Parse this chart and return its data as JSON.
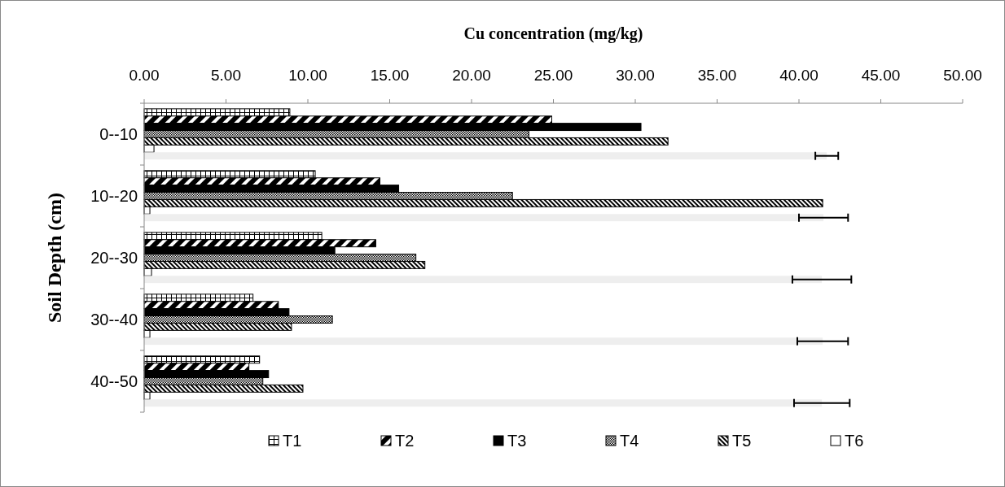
{
  "chart_data": {
    "type": "bar",
    "orientation": "horizontal",
    "xlabel": "Cu concentration (mg/kg)",
    "ylabel": "Soil Depth (cm)",
    "categories": [
      "0--10",
      "10--20",
      "20--30",
      "30--40",
      "40--50"
    ],
    "xlim": [
      0,
      50
    ],
    "xticks": [
      {
        "value": 0,
        "label": "0.00"
      },
      {
        "value": 5,
        "label": "5.00"
      },
      {
        "value": 10,
        "label": "10.00"
      },
      {
        "value": 15,
        "label": "15.00"
      },
      {
        "value": 20,
        "label": "20.00"
      },
      {
        "value": 25,
        "label": "25.00"
      },
      {
        "value": 30,
        "label": "30.00"
      },
      {
        "value": 35,
        "label": "35.00"
      },
      {
        "value": 40,
        "label": "40.00"
      },
      {
        "value": 45,
        "label": "45.00"
      },
      {
        "value": 50,
        "label": "50.00"
      }
    ],
    "series": [
      {
        "name": "T1",
        "color": "#000000",
        "values": [
          8.9,
          10.45,
          10.85,
          6.65,
          7.05
        ]
      },
      {
        "name": "T2",
        "color": "#000000",
        "values": [
          24.9,
          14.4,
          14.15,
          8.2,
          6.4
        ]
      },
      {
        "name": "T3",
        "color": "#000000",
        "values": [
          30.35,
          15.55,
          11.65,
          8.85,
          7.6
        ]
      },
      {
        "name": "T4",
        "color": "#000000",
        "values": [
          23.5,
          22.5,
          16.6,
          11.5,
          7.25
        ]
      },
      {
        "name": "T5",
        "color": "#000000",
        "values": [
          32.0,
          41.45,
          17.15,
          9.0,
          9.7
        ]
      },
      {
        "name": "T6",
        "color": "#ffffff",
        "values": [
          0.6,
          0.35,
          0.45,
          0.35,
          0.35
        ]
      },
      {
        "color": "#eeeeee",
        "values": [
          41.7,
          41.5,
          41.4,
          41.45,
          41.4
        ],
        "errors": [
          0.7,
          1.5,
          1.8,
          1.55,
          1.7
        ]
      }
    ],
    "grid": false,
    "legend": "bottom"
  }
}
